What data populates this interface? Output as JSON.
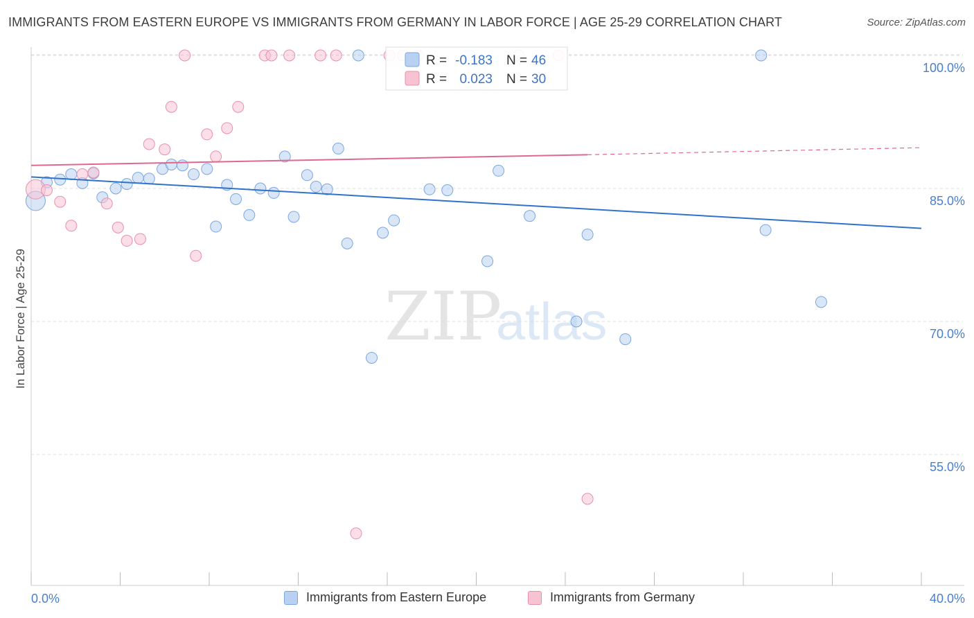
{
  "title": "IMMIGRANTS FROM EASTERN EUROPE VS IMMIGRANTS FROM GERMANY IN LABOR FORCE | AGE 25-29 CORRELATION CHART",
  "source": "Source: ZipAtlas.com",
  "watermark": {
    "zip": "ZIP",
    "atlas": "atlas"
  },
  "colors": {
    "blue_fill": "#b8d1f2",
    "blue_stroke": "#7aa6df",
    "blue_line": "#2f72cc",
    "pink_fill": "#f7c3d3",
    "pink_stroke": "#e890ab",
    "pink_line": "#e0688f",
    "axis_label": "#4a7fcc",
    "grid": "#dddddd"
  },
  "legend": {
    "rows": [
      {
        "r_label": "R =",
        "r_value": "-0.183",
        "n_label": "N =",
        "n_value": "46"
      },
      {
        "r_label": "R =",
        "r_value": "0.023",
        "n_label": "N =",
        "n_value": "30"
      }
    ]
  },
  "bottom_legend": {
    "series1": "Immigrants from Eastern Europe",
    "series2": "Immigrants from Germany"
  },
  "chart_data": {
    "type": "scatter",
    "title": "IMMIGRANTS FROM EASTERN EUROPE VS IMMIGRANTS FROM GERMANY IN LABOR FORCE | AGE 25-29 CORRELATION CHART",
    "xlabel": "",
    "ylabel": "In Labor Force | Age 25-29",
    "xlim": [
      0,
      40
    ],
    "ylim": [
      40,
      101.5
    ],
    "x_tick_labels": [
      "0.0%",
      "40.0%"
    ],
    "y_ticks": [
      55,
      70,
      85,
      100
    ],
    "y_tick_labels": [
      "55.0%",
      "70.0%",
      "85.0%",
      "100.0%"
    ],
    "grid": true,
    "legend_position": "top-center",
    "series": [
      {
        "name": "Immigrants from Eastern Europe",
        "color": "#b8d1f2",
        "points": [
          {
            "x": 0.2,
            "y": 83.6,
            "size": "large"
          },
          {
            "x": 0.7,
            "y": 85.7
          },
          {
            "x": 1.3,
            "y": 86.0
          },
          {
            "x": 1.8,
            "y": 86.6
          },
          {
            "x": 2.3,
            "y": 85.6
          },
          {
            "x": 2.8,
            "y": 86.7
          },
          {
            "x": 3.2,
            "y": 84.0
          },
          {
            "x": 3.8,
            "y": 85.0
          },
          {
            "x": 4.3,
            "y": 85.5
          },
          {
            "x": 4.8,
            "y": 86.2
          },
          {
            "x": 5.3,
            "y": 86.1
          },
          {
            "x": 5.9,
            "y": 87.2
          },
          {
            "x": 6.3,
            "y": 87.7
          },
          {
            "x": 6.8,
            "y": 87.6
          },
          {
            "x": 7.3,
            "y": 86.6
          },
          {
            "x": 7.9,
            "y": 87.2
          },
          {
            "x": 8.3,
            "y": 80.7
          },
          {
            "x": 8.8,
            "y": 85.4
          },
          {
            "x": 9.2,
            "y": 83.8
          },
          {
            "x": 9.8,
            "y": 82.0
          },
          {
            "x": 10.3,
            "y": 85.0
          },
          {
            "x": 10.9,
            "y": 84.5
          },
          {
            "x": 11.4,
            "y": 88.6
          },
          {
            "x": 11.8,
            "y": 81.8
          },
          {
            "x": 12.4,
            "y": 86.5
          },
          {
            "x": 12.8,
            "y": 85.2
          },
          {
            "x": 13.3,
            "y": 84.9
          },
          {
            "x": 13.8,
            "y": 89.5
          },
          {
            "x": 14.2,
            "y": 78.8
          },
          {
            "x": 14.7,
            "y": 100.0
          },
          {
            "x": 15.3,
            "y": 65.9
          },
          {
            "x": 15.8,
            "y": 80.0
          },
          {
            "x": 16.3,
            "y": 81.4
          },
          {
            "x": 17.9,
            "y": 84.9
          },
          {
            "x": 18.7,
            "y": 84.8
          },
          {
            "x": 19.7,
            "y": 100.0
          },
          {
            "x": 20.5,
            "y": 76.8
          },
          {
            "x": 21.0,
            "y": 87.0
          },
          {
            "x": 21.9,
            "y": 100.0
          },
          {
            "x": 22.4,
            "y": 81.9
          },
          {
            "x": 24.5,
            "y": 70.0
          },
          {
            "x": 25.0,
            "y": 79.8
          },
          {
            "x": 26.7,
            "y": 68.0
          },
          {
            "x": 32.8,
            "y": 100.0
          },
          {
            "x": 33.0,
            "y": 80.3
          },
          {
            "x": 35.5,
            "y": 72.2
          }
        ],
        "trend": {
          "x": [
            0,
            40
          ],
          "y": [
            86.3,
            80.5
          ]
        }
      },
      {
        "name": "Immigrants from Germany",
        "color": "#f7c3d3",
        "points": [
          {
            "x": 0.2,
            "y": 84.9,
            "size": "large"
          },
          {
            "x": 0.7,
            "y": 84.8
          },
          {
            "x": 1.3,
            "y": 83.5
          },
          {
            "x": 1.8,
            "y": 80.8
          },
          {
            "x": 2.3,
            "y": 86.6
          },
          {
            "x": 2.8,
            "y": 86.8
          },
          {
            "x": 3.4,
            "y": 83.3
          },
          {
            "x": 3.9,
            "y": 80.6
          },
          {
            "x": 4.3,
            "y": 79.1
          },
          {
            "x": 4.9,
            "y": 79.3
          },
          {
            "x": 5.3,
            "y": 90.0
          },
          {
            "x": 6.0,
            "y": 89.4
          },
          {
            "x": 6.3,
            "y": 94.2
          },
          {
            "x": 6.9,
            "y": 100.0
          },
          {
            "x": 7.4,
            "y": 77.4
          },
          {
            "x": 7.9,
            "y": 91.1
          },
          {
            "x": 8.3,
            "y": 88.6
          },
          {
            "x": 8.8,
            "y": 91.8
          },
          {
            "x": 9.3,
            "y": 94.2
          },
          {
            "x": 10.5,
            "y": 100.0
          },
          {
            "x": 10.8,
            "y": 100.0
          },
          {
            "x": 11.6,
            "y": 100.0
          },
          {
            "x": 13.0,
            "y": 100.0
          },
          {
            "x": 13.7,
            "y": 100.0
          },
          {
            "x": 14.6,
            "y": 46.1
          },
          {
            "x": 16.1,
            "y": 100.0
          },
          {
            "x": 16.7,
            "y": 100.0
          },
          {
            "x": 17.4,
            "y": 100.0
          },
          {
            "x": 23.7,
            "y": 100.0
          },
          {
            "x": 25.0,
            "y": 50.0
          }
        ],
        "trend": {
          "x": [
            0,
            25.0
          ],
          "y": [
            87.6,
            88.8
          ]
        },
        "trend_extension": {
          "x": [
            25.0,
            40
          ],
          "y": [
            88.8,
            89.6
          ]
        }
      }
    ]
  }
}
